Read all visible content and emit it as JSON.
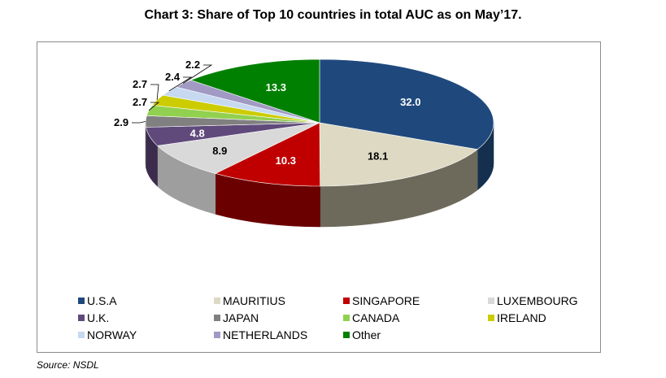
{
  "source": "Source: NSDL",
  "chart_data": {
    "type": "pie",
    "title": "Chart 3: Share of Top 10 countries in total AUC as on May’17.",
    "slices": [
      {
        "label": "U.S.A",
        "value": 32.0,
        "display": "32.0",
        "color": "#1f497d",
        "side": "#15304f"
      },
      {
        "label": "MAURITIUS",
        "value": 18.1,
        "display": "18.1",
        "color": "#ddd9c3",
        "side": "#6d6a5b"
      },
      {
        "label": "SINGAPORE",
        "value": 10.3,
        "display": "10.3",
        "color": "#c00000",
        "side": "#6b0000"
      },
      {
        "label": "LUXEMBOURG",
        "value": 8.9,
        "display": "8.9",
        "color": "#d9d9d9",
        "side": "#9e9e9e"
      },
      {
        "label": "U.K.",
        "value": 4.8,
        "display": "4.8",
        "color": "#604a7b",
        "side": "#3b2c4d"
      },
      {
        "label": "JAPAN",
        "value": 2.9,
        "display": "2.9",
        "color": "#808080",
        "side": "#555555"
      },
      {
        "label": "CANADA",
        "value": 2.7,
        "display": "2.7",
        "color": "#92d050",
        "side": "#5e8a30"
      },
      {
        "label": "IRELAND",
        "value": 2.7,
        "display": "2.7",
        "color": "#cccc00",
        "side": "#8a8a00"
      },
      {
        "label": "NORWAY",
        "value": 2.4,
        "display": "2.4",
        "color": "#c6d9f1",
        "side": "#8ea3bd"
      },
      {
        "label": "NETHERLANDS",
        "value": 2.2,
        "display": "2.2",
        "color": "#a09ac4",
        "side": "#6c6794"
      },
      {
        "label": "Other",
        "value": 13.3,
        "display": "13.3",
        "color": "#008000",
        "side": "#005000"
      }
    ],
    "legend": {
      "placement": "bottom",
      "columns": 4
    }
  }
}
